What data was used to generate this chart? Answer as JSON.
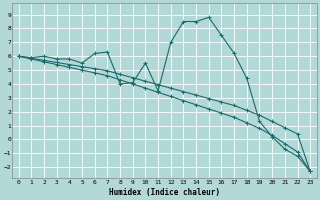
{
  "xlabel": "Humidex (Indice chaleur)",
  "background_color": "#b2d8d8",
  "grid_color": "#c8e8e8",
  "line_color": "#1a6b6b",
  "xlim": [
    -0.5,
    23.5
  ],
  "ylim": [
    -2.8,
    9.8
  ],
  "xticks": [
    0,
    1,
    2,
    3,
    4,
    5,
    6,
    7,
    8,
    9,
    10,
    11,
    12,
    13,
    14,
    15,
    16,
    17,
    18,
    19,
    20,
    21,
    22,
    23
  ],
  "yticks": [
    -2,
    -1,
    0,
    1,
    2,
    3,
    4,
    5,
    6,
    7,
    8,
    9
  ],
  "series1_x": [
    0,
    1,
    2,
    3,
    4,
    5,
    6,
    7,
    8,
    9,
    10,
    11,
    12,
    13,
    14,
    15,
    16,
    17,
    18,
    19,
    20,
    21,
    22,
    23
  ],
  "series1_y": [
    6.0,
    5.9,
    6.0,
    5.8,
    5.8,
    5.5,
    6.2,
    6.3,
    4.0,
    4.1,
    5.5,
    3.5,
    7.0,
    8.5,
    8.5,
    8.8,
    7.5,
    6.2,
    4.4,
    1.3,
    0.2,
    -0.7,
    -1.2,
    -2.3
  ],
  "series2_x": [
    0,
    1,
    2,
    3,
    4,
    5,
    6,
    7,
    8,
    9,
    10,
    11,
    12,
    13,
    14,
    15,
    16,
    17,
    18,
    19,
    20,
    21,
    22,
    23
  ],
  "series2_y": [
    6.0,
    5.85,
    5.7,
    5.55,
    5.4,
    5.25,
    5.1,
    4.95,
    4.7,
    4.45,
    4.2,
    3.95,
    3.7,
    3.45,
    3.2,
    2.95,
    2.7,
    2.45,
    2.1,
    1.75,
    1.3,
    0.85,
    0.4,
    -2.3
  ],
  "series3_x": [
    0,
    1,
    2,
    3,
    4,
    5,
    6,
    7,
    8,
    9,
    10,
    11,
    12,
    13,
    14,
    15,
    16,
    17,
    18,
    19,
    20,
    21,
    22,
    23
  ],
  "series3_y": [
    6.0,
    5.8,
    5.6,
    5.4,
    5.2,
    5.0,
    4.8,
    4.6,
    4.3,
    4.0,
    3.7,
    3.4,
    3.1,
    2.8,
    2.5,
    2.2,
    1.9,
    1.6,
    1.2,
    0.8,
    0.3,
    -0.3,
    -0.9,
    -2.3
  ]
}
